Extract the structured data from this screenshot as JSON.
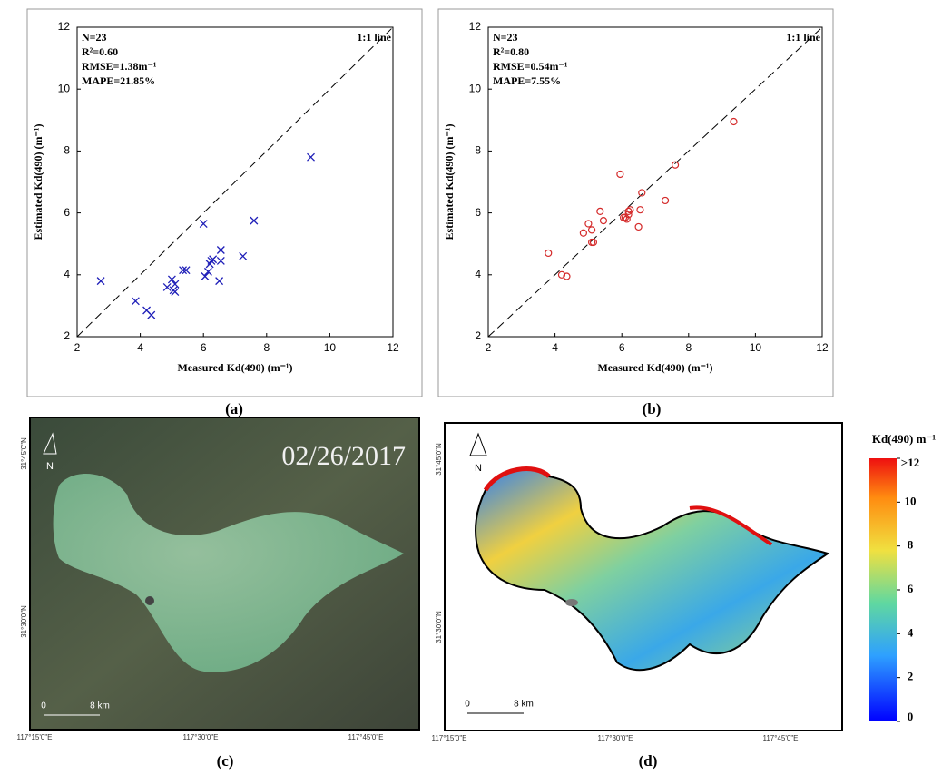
{
  "chart_data": [
    {
      "type": "scatter",
      "panel_label": "(a)",
      "marker": "x",
      "color": "#1f1fb8",
      "xlabel": "Measured Kd(490) (m⁻¹)",
      "ylabel": "Estimated Kd(490) (m⁻¹)",
      "annotations": [
        "N=23",
        "R²=0.60",
        "RMSE=1.38m⁻¹",
        "MAPE=21.85%"
      ],
      "line_label": "1:1 line",
      "xlim": [
        2,
        12
      ],
      "ylim": [
        2,
        12
      ],
      "xticks": [
        2,
        4,
        6,
        8,
        10,
        12
      ],
      "yticks": [
        2,
        4,
        6,
        8,
        10,
        12
      ],
      "x": [
        2.75,
        3.85,
        4.2,
        4.35,
        4.85,
        5.0,
        5.05,
        5.1,
        5.1,
        5.35,
        5.45,
        6.0,
        6.05,
        6.15,
        6.2,
        6.25,
        6.3,
        6.5,
        6.55,
        6.55,
        7.25,
        7.6,
        9.4
      ],
      "values": [
        3.8,
        3.15,
        2.85,
        2.7,
        3.6,
        3.85,
        3.5,
        3.45,
        3.7,
        4.15,
        4.15,
        5.65,
        3.95,
        4.1,
        4.35,
        4.45,
        4.5,
        3.8,
        4.45,
        4.8,
        4.6,
        5.75,
        7.8
      ]
    },
    {
      "type": "scatter",
      "panel_label": "(b)",
      "marker": "o",
      "color": "#d42a2a",
      "xlabel": "Measured Kd(490) (m⁻¹)",
      "ylabel": "Estimated Kd(490) (m⁻¹)",
      "annotations": [
        "N=23",
        "R²=0.80",
        "RMSE=0.54m⁻¹",
        "MAPE=7.55%"
      ],
      "line_label": "1:1 line",
      "xlim": [
        2,
        12
      ],
      "ylim": [
        2,
        12
      ],
      "xticks": [
        2,
        4,
        6,
        8,
        10,
        12
      ],
      "yticks": [
        2,
        4,
        6,
        8,
        10,
        12
      ],
      "x": [
        3.8,
        4.2,
        4.35,
        4.85,
        5.0,
        5.1,
        5.1,
        5.35,
        5.45,
        5.95,
        6.1,
        6.15,
        6.2,
        6.25,
        6.5,
        6.55,
        6.6,
        7.3,
        7.6,
        9.35,
        5.15,
        6.05,
        6.2
      ],
      "values": [
        4.7,
        4.0,
        3.95,
        5.35,
        5.65,
        5.05,
        5.45,
        6.05,
        5.75,
        7.25,
        5.85,
        5.8,
        5.95,
        6.1,
        5.55,
        6.1,
        6.65,
        6.4,
        7.55,
        8.95,
        5.05,
        5.85,
        6.05
      ]
    }
  ],
  "maps": [
    {
      "panel_label": "(c)",
      "date": "02/26/2017",
      "north": "N",
      "scale": [
        "0",
        "8 km"
      ],
      "lat": [
        "31°45'0\"N",
        "31°30'0\"N"
      ],
      "lon": [
        "117°15'0\"E",
        "117°30'0\"E",
        "117°45'0\"E"
      ]
    },
    {
      "panel_label": "(d)",
      "north": "N",
      "scale": [
        "0",
        "8 km"
      ],
      "lat": [
        "31°45'0\"N",
        "31°30'0\"N"
      ],
      "lon": [
        "117°15'0\"E",
        "117°30'0\"E",
        "117°45'0\"E"
      ]
    }
  ],
  "colorbar": {
    "title": "Kd(490) m⁻¹",
    "lim": [
      0,
      12
    ],
    "ticks": [
      0,
      2,
      4,
      6,
      8,
      10,
      {
        "value": 12,
        "label": ">12"
      }
    ]
  }
}
